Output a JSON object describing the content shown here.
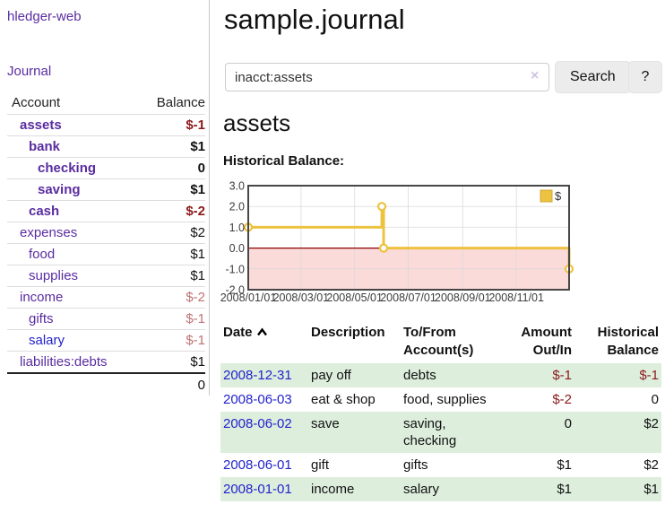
{
  "app": {
    "brand": "hledger-web",
    "journal_link": "Journal"
  },
  "sidebar": {
    "headers": [
      "Account",
      "Balance"
    ],
    "rows": [
      {
        "name": "assets",
        "level": 1,
        "bold": true,
        "balance": "$-1",
        "tone": "neg"
      },
      {
        "name": "bank",
        "level": 2,
        "bold": true,
        "balance": "$1",
        "tone": ""
      },
      {
        "name": "checking",
        "level": 3,
        "bold": true,
        "balance": "0",
        "tone": ""
      },
      {
        "name": "saving",
        "level": 3,
        "bold": true,
        "balance": "$1",
        "tone": ""
      },
      {
        "name": "cash",
        "level": 2,
        "bold": true,
        "balance": "$-2",
        "tone": "neg"
      },
      {
        "name": "expenses",
        "level": 1,
        "bold": false,
        "balance": "$2",
        "tone": ""
      },
      {
        "name": "food",
        "level": 2,
        "bold": false,
        "balance": "$1",
        "tone": ""
      },
      {
        "name": "supplies",
        "level": 2,
        "bold": false,
        "balance": "$1",
        "tone": ""
      },
      {
        "name": "income",
        "level": 1,
        "bold": false,
        "balance": "$-2",
        "tone": "soft"
      },
      {
        "name": "gifts",
        "level": 2,
        "bold": false,
        "balance": "$-1",
        "tone": "soft"
      },
      {
        "name": "salary",
        "level": 2,
        "bold": false,
        "balance": "$-1",
        "tone": "soft",
        "link_color": "blue"
      },
      {
        "name": "liabilities:debts",
        "level": 1,
        "bold": false,
        "balance": "$1",
        "tone": ""
      }
    ],
    "total": "0"
  },
  "main": {
    "title": "sample.journal",
    "search": {
      "value": "inacct:assets",
      "clear_icon": "×",
      "button_label": "Search",
      "help_label": "?"
    },
    "account_heading": "assets",
    "chart_label": "Historical Balance:"
  },
  "chart_data": {
    "type": "line",
    "title": "Historical Balance",
    "step": true,
    "ylim": [
      -2,
      3
    ],
    "xlim_days": [
      0,
      365
    ],
    "y_ticks": [
      "3.0",
      "2.0",
      "1.0",
      "0.0",
      "-1.0",
      "-2.0"
    ],
    "x_ticks": [
      "2008/01/01",
      "2008/03/01",
      "2008/05/01",
      "2008/07/01",
      "2008/09/01",
      "2008/11/01"
    ],
    "x_tick_days": [
      0,
      60,
      121,
      182,
      244,
      305
    ],
    "series": [
      {
        "name": "$",
        "color": "#edc240",
        "dates": [
          "2008-01-01",
          "2008-06-01",
          "2008-06-03",
          "2008-12-31"
        ],
        "points": [
          {
            "d": 0,
            "y": 1
          },
          {
            "d": 152,
            "y": 2
          },
          {
            "d": 154,
            "y": 0
          },
          {
            "d": 365,
            "y": -1
          }
        ]
      }
    ],
    "legend": {
      "label": "$",
      "position": "top-right"
    },
    "below_zero_fill": "#fbdada",
    "zero_line_color": "#8b0000",
    "grid_color": "#d8d8d8",
    "border_color": "#464646"
  },
  "register": {
    "headers": [
      "Date",
      "Description",
      "To/From Account(s)",
      "Amount Out/In",
      "Historical Balance"
    ],
    "rows": [
      {
        "date": "2008-12-31",
        "description": "pay off",
        "accounts": "debts",
        "amount": "$-1",
        "amount_neg": true,
        "balance": "$-1",
        "balance_neg": true,
        "shaded": true
      },
      {
        "date": "2008-06-03",
        "description": "eat & shop",
        "accounts": "food, supplies",
        "amount": "$-2",
        "amount_neg": true,
        "balance": "0",
        "balance_neg": false,
        "shaded": false
      },
      {
        "date": "2008-06-02",
        "description": "save",
        "accounts": "saving,\nchecking",
        "amount": "0",
        "amount_neg": false,
        "balance": "$2",
        "balance_neg": false,
        "shaded": true
      },
      {
        "date": "2008-06-01",
        "description": "gift",
        "accounts": "gifts",
        "amount": "$1",
        "amount_neg": false,
        "balance": "$2",
        "balance_neg": false,
        "shaded": false
      },
      {
        "date": "2008-01-01",
        "description": "income",
        "accounts": "salary",
        "amount": "$1",
        "amount_neg": false,
        "balance": "$1",
        "balance_neg": false,
        "shaded": true
      }
    ]
  }
}
